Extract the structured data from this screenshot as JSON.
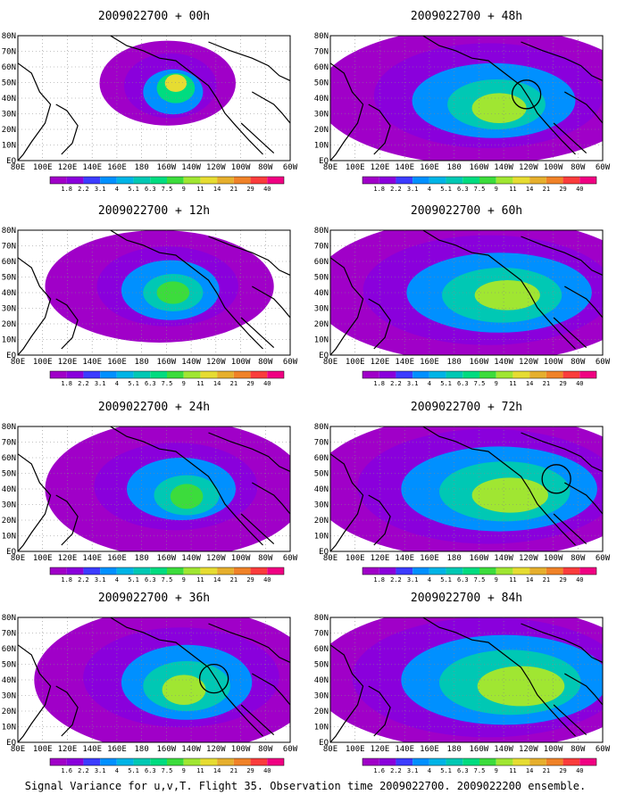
{
  "panels": [
    {
      "title": "2009022700 + 00h",
      "regime": 0,
      "circle": false
    },
    {
      "title": "2009022700 + 48h",
      "regime": 4,
      "circle": true
    },
    {
      "title": "2009022700 + 12h",
      "regime": 1,
      "circle": false
    },
    {
      "title": "2009022700 + 60h",
      "regime": 5,
      "circle": false
    },
    {
      "title": "2009022700 + 24h",
      "regime": 2,
      "circle": false
    },
    {
      "title": "2009022700 + 72h",
      "regime": 6,
      "circle": true
    },
    {
      "title": "2009022700 + 36h",
      "regime": 3,
      "circle": true
    },
    {
      "title": "2009022700 + 84h",
      "regime": 7,
      "circle": false
    }
  ],
  "lat_labels": [
    "80N",
    "70N",
    "60N",
    "50N",
    "40N",
    "30N",
    "20N",
    "10N",
    "EQ"
  ],
  "lon_labels": [
    "80E",
    "100E",
    "120E",
    "140E",
    "160E",
    "180",
    "160W",
    "140W",
    "120W",
    "100W",
    "80W",
    "60W"
  ],
  "colorbar": {
    "labels": [
      "1.8",
      "2.2",
      "3.1",
      "4",
      "5.1",
      "6.3",
      "7.5",
      "9",
      "11",
      "14",
      "21",
      "29",
      "40"
    ],
    "label_variants": {
      "last_row_first": "1.6"
    },
    "colors": [
      "#a000c8",
      "#8a00dc",
      "#3c3cff",
      "#0090ff",
      "#00b4e6",
      "#00c8b4",
      "#00dc80",
      "#3cdc3c",
      "#a0e632",
      "#e6dc32",
      "#e6af2d",
      "#f08228",
      "#fa3c3c",
      "#f00082"
    ]
  },
  "caption": "Signal Variance for u,v,T. Flight 35. Observation time 2009022700. 2009022200 ensemble."
}
